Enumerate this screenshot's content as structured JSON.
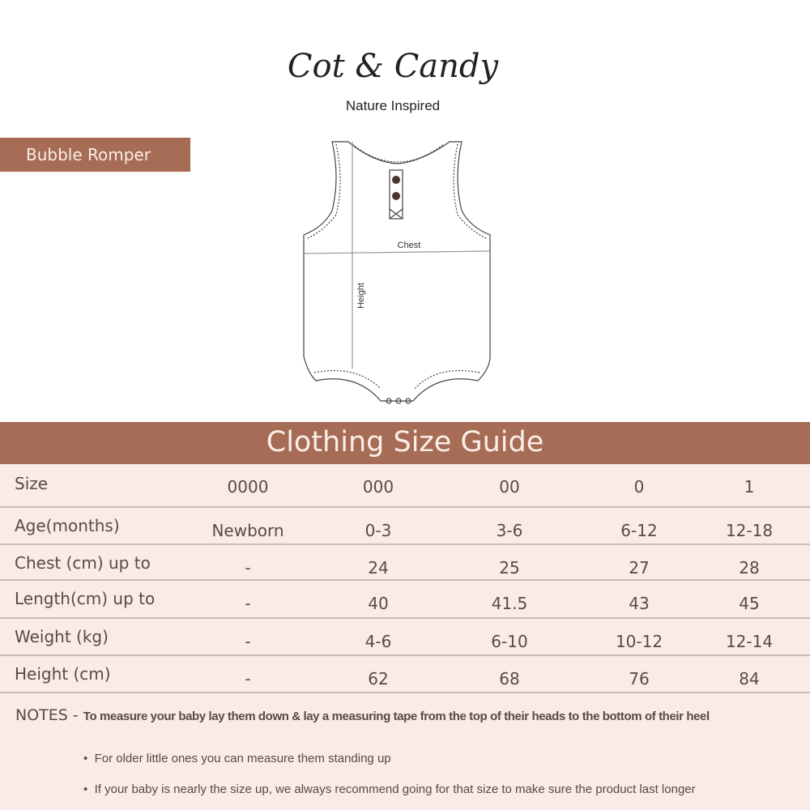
{
  "brand": {
    "logo": "Cot & Candy",
    "tagline": "Nature Inspired"
  },
  "product": {
    "name": "Bubble Romper"
  },
  "diagram": {
    "chest_label": "Chest",
    "height_label": "Height"
  },
  "guide": {
    "title": "Clothing Size Guide"
  },
  "table": {
    "rows": [
      {
        "label": "Size",
        "values": [
          "0000",
          "000",
          "00",
          "0",
          "1"
        ]
      },
      {
        "label": "Age(months)",
        "values": [
          "Newborn",
          "0-3",
          "3-6",
          "6-12",
          "12-18"
        ]
      },
      {
        "label": "Chest (cm) up to",
        "values": [
          "-",
          "24",
          "25",
          "27",
          "28"
        ]
      },
      {
        "label": "Length(cm) up to",
        "values": [
          "-",
          "40",
          "41.5",
          "43",
          "45"
        ]
      },
      {
        "label": "Weight (kg)",
        "values": [
          "-",
          "4-6",
          "6-10",
          "10-12",
          "12-14"
        ]
      },
      {
        "label": "Height (cm)",
        "values": [
          "-",
          "62",
          "68",
          "76",
          "84"
        ]
      }
    ]
  },
  "notes": {
    "prefix": "NOTES -",
    "main": "To measure your baby lay them down & lay a measuring tape from the top of their heads to the bottom of their heel",
    "bullets": [
      "For older little ones you can measure them standing up",
      "If your baby is nearly the size up, we always recommend going for that size to make sure the product last longer"
    ]
  },
  "colors": {
    "accent": "#a66c55",
    "table_bg": "#f8ebe8",
    "text": "#5a4a44"
  }
}
